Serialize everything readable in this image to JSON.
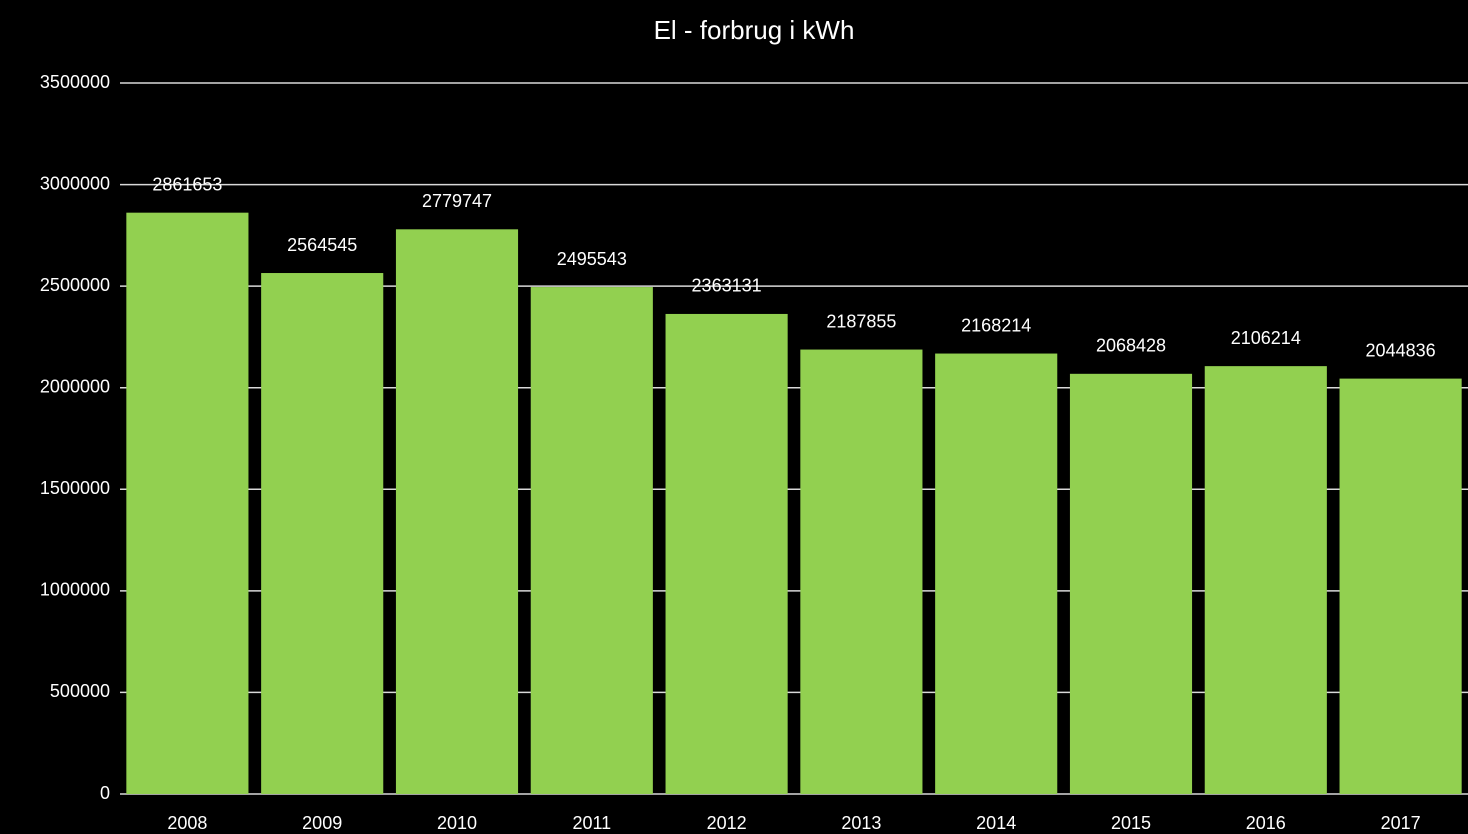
{
  "chart_data": {
    "type": "bar",
    "title": "El - forbrug i kWh",
    "categories": [
      "2008",
      "2009",
      "2010",
      "2011",
      "2012",
      "2013",
      "2014",
      "2015",
      "2016",
      "2017"
    ],
    "values": [
      2861653,
      2564545,
      2779747,
      2495543,
      2363131,
      2187855,
      2168214,
      2068428,
      2106214,
      2044836
    ],
    "color": "#92d050",
    "ylim": [
      0,
      3500000
    ],
    "yticks": [
      0,
      500000,
      1000000,
      1500000,
      2000000,
      2500000,
      3000000,
      3500000
    ],
    "grid": true
  }
}
